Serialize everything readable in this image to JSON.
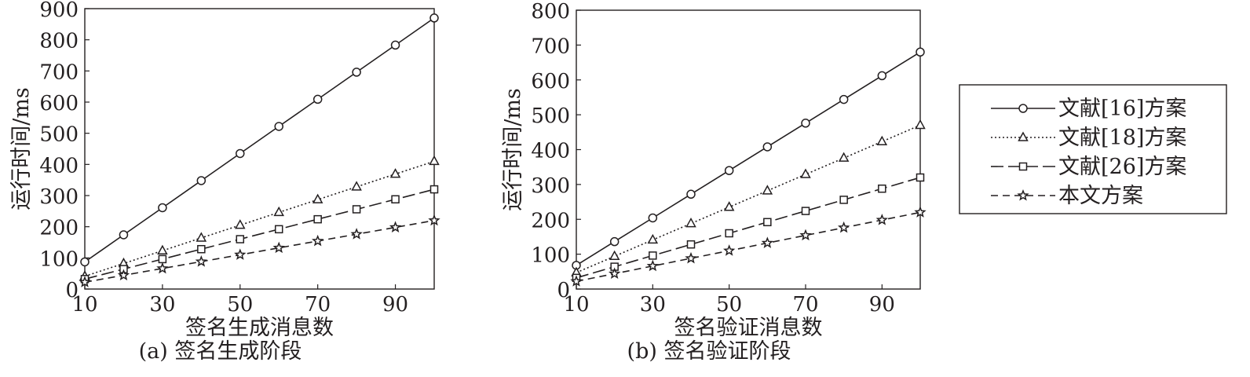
{
  "chart_data": [
    {
      "type": "line",
      "id": "a",
      "caption": "(a) 签名生成阶段",
      "xlabel": "签名生成消息数",
      "ylabel": "运行时间/ms",
      "x": [
        10,
        20,
        30,
        40,
        50,
        60,
        70,
        80,
        90,
        100
      ],
      "xlim": [
        10,
        100
      ],
      "xticks": [
        10,
        30,
        50,
        70,
        90
      ],
      "ylim": [
        0,
        900
      ],
      "yticks": [
        0,
        100,
        200,
        300,
        400,
        500,
        600,
        700,
        800,
        900
      ],
      "grid": false,
      "series": [
        {
          "name": "文献[16]方案",
          "marker": "circle",
          "line": "solid",
          "values": [
            87,
            174,
            261,
            348,
            435,
            522,
            609,
            696,
            783,
            870
          ]
        },
        {
          "name": "文献[18]方案",
          "marker": "triangle",
          "line": "dotted",
          "values": [
            41,
            82,
            123,
            164,
            205,
            246,
            287,
            328,
            369,
            410
          ]
        },
        {
          "name": "文献[26]方案",
          "marker": "square",
          "line": "longdash",
          "values": [
            32,
            64,
            96,
            128,
            160,
            192,
            224,
            256,
            288,
            320
          ]
        },
        {
          "name": "本文方案",
          "marker": "star",
          "line": "dashed",
          "values": [
            22,
            44,
            66,
            88,
            110,
            132,
            154,
            176,
            198,
            220
          ]
        }
      ]
    },
    {
      "type": "line",
      "id": "b",
      "caption": "(b) 签名验证阶段",
      "xlabel": "签名验证消息数",
      "ylabel": "运行时间/ms",
      "x": [
        10,
        20,
        30,
        40,
        50,
        60,
        70,
        80,
        90,
        100
      ],
      "xlim": [
        10,
        100
      ],
      "xticks": [
        10,
        30,
        50,
        70,
        90
      ],
      "ylim": [
        0,
        800
      ],
      "yticks": [
        0,
        100,
        200,
        300,
        400,
        500,
        600,
        700,
        800
      ],
      "grid": false,
      "series": [
        {
          "name": "文献[16]方案",
          "marker": "circle",
          "line": "solid",
          "values": [
            68,
            136,
            204,
            272,
            340,
            408,
            476,
            544,
            612,
            680
          ]
        },
        {
          "name": "文献[18]方案",
          "marker": "triangle",
          "line": "dotted",
          "values": [
            47,
            94,
            141,
            188,
            235,
            282,
            329,
            376,
            423,
            470
          ]
        },
        {
          "name": "文献[26]方案",
          "marker": "square",
          "line": "longdash",
          "values": [
            32,
            64,
            96,
            128,
            160,
            192,
            224,
            256,
            288,
            320
          ]
        },
        {
          "name": "本文方案",
          "marker": "star",
          "line": "dashed",
          "values": [
            22,
            44,
            66,
            88,
            110,
            132,
            154,
            176,
            198,
            220
          ]
        }
      ]
    }
  ],
  "legend": {
    "placement": "right",
    "items": [
      "文献[16]方案",
      "文献[18]方案",
      "文献[26]方案",
      "本文方案"
    ]
  },
  "colors": {
    "ink": "#231f20",
    "background": "#ffffff"
  }
}
